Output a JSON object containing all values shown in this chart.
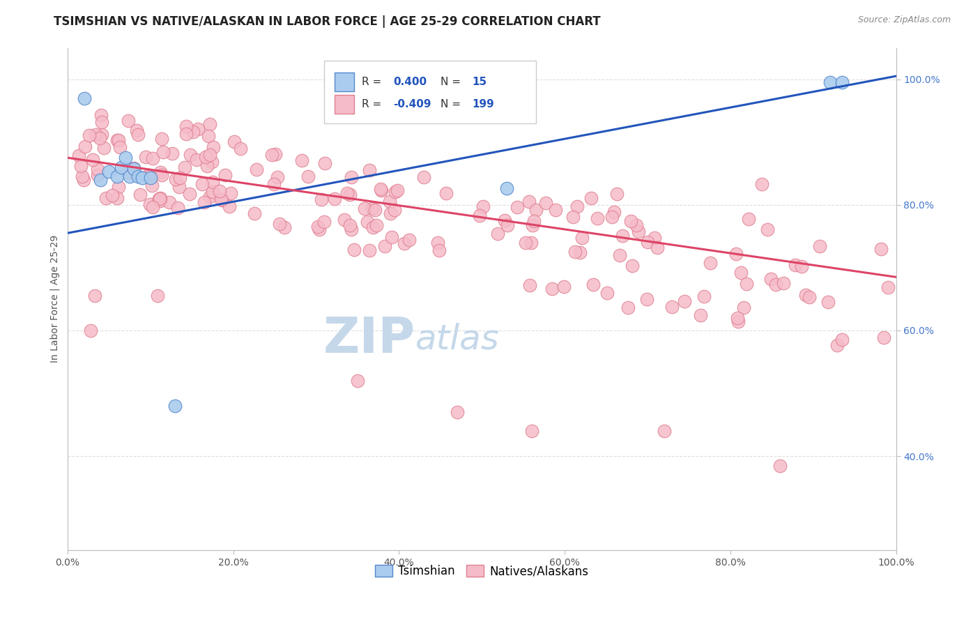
{
  "title": "TSIMSHIAN VS NATIVE/ALASKAN IN LABOR FORCE | AGE 25-29 CORRELATION CHART",
  "source_text": "Source: ZipAtlas.com",
  "ylabel": "In Labor Force | Age 25-29",
  "xlim": [
    0.0,
    1.0
  ],
  "ylim": [
    0.25,
    1.05
  ],
  "plot_ylim": [
    0.25,
    1.05
  ],
  "xticks": [
    0.0,
    0.2,
    0.4,
    0.6,
    0.8,
    1.0
  ],
  "yticks_right": [
    0.4,
    0.6,
    0.8,
    1.0
  ],
  "xticklabels": [
    "0.0%",
    "20.0%",
    "40.0%",
    "60.0%",
    "80.0%",
    "100.0%"
  ],
  "yticklabels_right": [
    "40.0%",
    "60.0%",
    "80.0%",
    "100.0%"
  ],
  "legend_label1": "Tsimshian",
  "legend_label2": "Natives/Alaskans",
  "R1": 0.4,
  "N1": 15,
  "R2": -0.409,
  "N2": 199,
  "tsimshian_color": "#aaccee",
  "tsimshian_edge": "#5588cc",
  "native_color": "#f5bbc8",
  "native_edge": "#e08090",
  "trend_blue": "#2255bb",
  "trend_pink": "#dd4466",
  "grid_color": "#dddddd",
  "watermark_color_zip": "#c5d8ea",
  "watermark_color_atlas": "#c5d8ea",
  "title_fontsize": 12,
  "axis_label_fontsize": 10,
  "tick_fontsize": 10,
  "tsimshian_x": [
    0.02,
    0.04,
    0.05,
    0.06,
    0.065,
    0.07,
    0.075,
    0.08,
    0.085,
    0.09,
    0.1,
    0.13,
    0.53,
    0.92,
    0.935
  ],
  "tsimshian_y": [
    0.97,
    0.84,
    0.853,
    0.845,
    0.86,
    0.875,
    0.845,
    0.857,
    0.845,
    0.843,
    0.843,
    0.48,
    0.826,
    0.995,
    0.995
  ],
  "blue_trend_x0": 0.0,
  "blue_trend_y0": 0.755,
  "blue_trend_x1": 1.0,
  "blue_trend_y1": 1.005,
  "pink_trend_x0": 0.0,
  "pink_trend_y0": 0.875,
  "pink_trend_x1": 1.0,
  "pink_trend_y1": 0.685
}
